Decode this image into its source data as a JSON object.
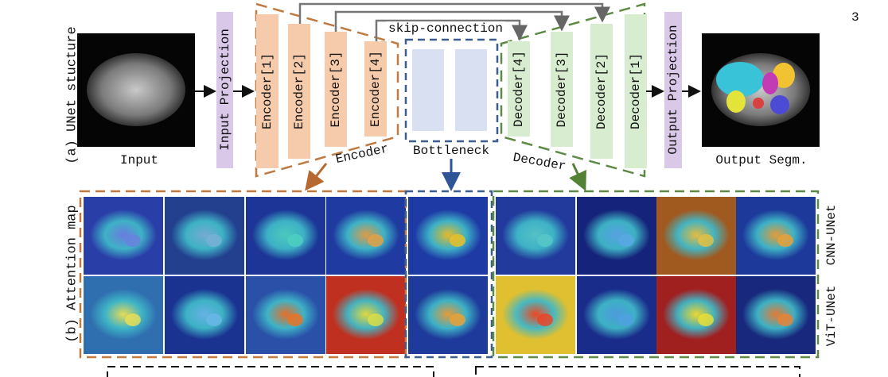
{
  "page_number": "3",
  "panel_a": {
    "label": "(a) UNet stucture",
    "input": "Input",
    "input_projection": "Input Projection",
    "encoders": [
      "Encoder[1]",
      "Encoder[2]",
      "Encoder[3]",
      "Encoder[4]"
    ],
    "skip_connection": "skip-connection",
    "decoders": [
      "Decoder[4]",
      "Decoder[3]",
      "Decoder[2]",
      "Decoder[1]"
    ],
    "output_projection": "Output Projection",
    "output": "Output Segm.",
    "sections": {
      "encoder": "Encoder",
      "bottleneck": "Bottleneck",
      "decoder": "Decoder"
    }
  },
  "panel_b": {
    "label": "(b) Attention map",
    "rows": [
      "CNN-UNet",
      "ViT-UNet"
    ]
  }
}
